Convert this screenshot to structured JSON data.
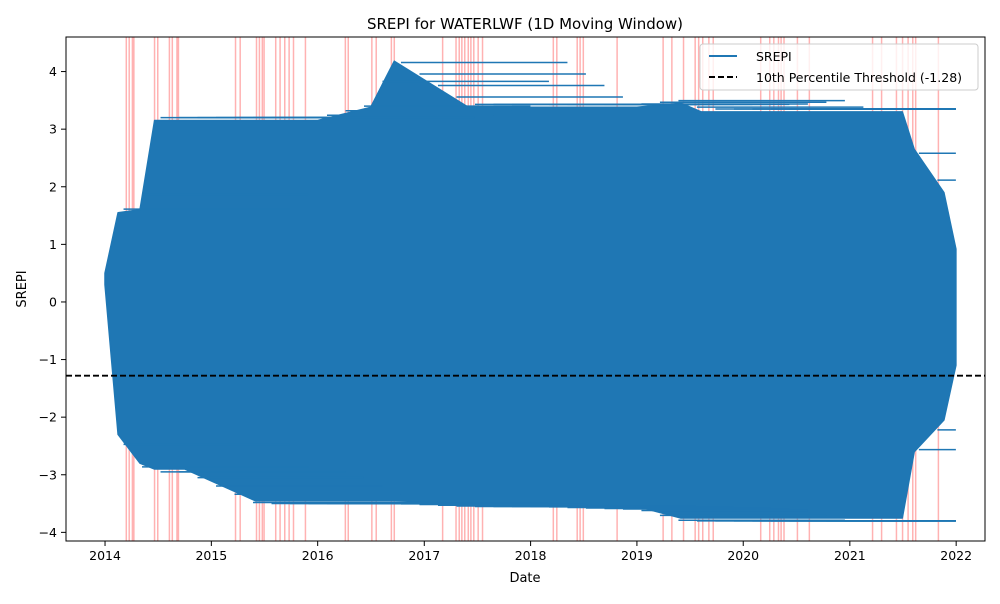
{
  "chart_data": {
    "type": "line",
    "title": "SREPI for WATERLWF (1D Moving Window)",
    "xlabel": "Date",
    "ylabel": "SREPI",
    "x_range": [
      "2013-08-20",
      "2022-04-10"
    ],
    "ylim": [
      -4.15,
      4.6
    ],
    "x_ticks": [
      "2014",
      "2015",
      "2016",
      "2017",
      "2018",
      "2019",
      "2020",
      "2021",
      "2022"
    ],
    "y_ticks": [
      "−4",
      "−3",
      "−2",
      "−1",
      "0",
      "1",
      "2",
      "3",
      "4"
    ],
    "y_tick_values": [
      -4,
      -3,
      -2,
      -1,
      0,
      1,
      2,
      3,
      4
    ],
    "grid": false,
    "legend_position": "top-right",
    "colors": {
      "series": "#1f77b4",
      "threshold": "#000000",
      "drought": "#ff0000"
    },
    "series": [
      {
        "name": "SREPI",
        "x": [
          "2014-01-01",
          "2014-02-15",
          "2014-05-01",
          "2014-06-20",
          "2014-10-01",
          "2015-06-01",
          "2016-01-01",
          "2016-07-01",
          "2016-09-20",
          "2017-06-01",
          "2018-01-01",
          "2019-01-01",
          "2019-06-01",
          "2019-08-10",
          "2020-06-01",
          "2021-01-01",
          "2021-06-30",
          "2021-08-10",
          "2021-11-20",
          "2021-12-31"
        ],
        "upper": [
          0.5,
          1.55,
          1.6,
          3.15,
          3.15,
          3.15,
          3.15,
          3.38,
          4.18,
          3.38,
          3.38,
          3.38,
          3.45,
          3.3,
          3.3,
          3.3,
          3.3,
          2.65,
          1.9,
          0.92
        ],
        "lower": [
          0.3,
          -2.3,
          -2.8,
          -2.9,
          -2.9,
          -3.45,
          -3.45,
          -3.45,
          -3.45,
          -3.5,
          -3.5,
          -3.55,
          -3.75,
          -3.75,
          -3.75,
          -3.75,
          -3.75,
          -2.6,
          -2.05,
          -1.1
        ]
      }
    ],
    "threshold": {
      "name": "10th Percentile Threshold (-1.28)",
      "value": -1.28
    },
    "drought_markers": [
      "2014-03-15",
      "2014-03-25",
      "2014-04-05",
      "2014-04-10",
      "2014-06-20",
      "2014-07-01",
      "2014-08-10",
      "2014-08-20",
      "2014-09-05",
      "2014-09-10",
      "2015-03-25",
      "2015-04-10",
      "2015-06-05",
      "2015-06-15",
      "2015-06-25",
      "2015-07-01",
      "2015-08-10",
      "2015-08-25",
      "2015-09-10",
      "2015-09-25",
      "2015-10-10",
      "2015-11-20",
      "2016-04-05",
      "2016-04-15",
      "2016-07-05",
      "2016-07-20",
      "2016-09-10",
      "2016-09-20",
      "2017-03-05",
      "2017-04-20",
      "2017-05-01",
      "2017-05-10",
      "2017-05-20",
      "2017-06-01",
      "2017-06-10",
      "2017-06-20",
      "2017-07-05",
      "2017-07-20",
      "2018-03-20",
      "2018-04-01",
      "2018-06-10",
      "2018-06-20",
      "2018-07-01",
      "2018-10-25",
      "2019-04-01",
      "2019-05-01",
      "2019-06-10",
      "2019-07-20",
      "2019-08-01",
      "2019-08-15",
      "2019-09-05",
      "2019-09-20",
      "2020-03-01",
      "2020-04-01",
      "2020-04-15",
      "2020-05-01",
      "2020-05-10",
      "2020-05-20",
      "2020-07-05",
      "2020-08-15",
      "2021-03-20",
      "2021-04-20",
      "2021-06-10",
      "2021-07-01",
      "2021-07-20",
      "2021-08-05",
      "2021-08-15",
      "2021-11-01"
    ]
  }
}
